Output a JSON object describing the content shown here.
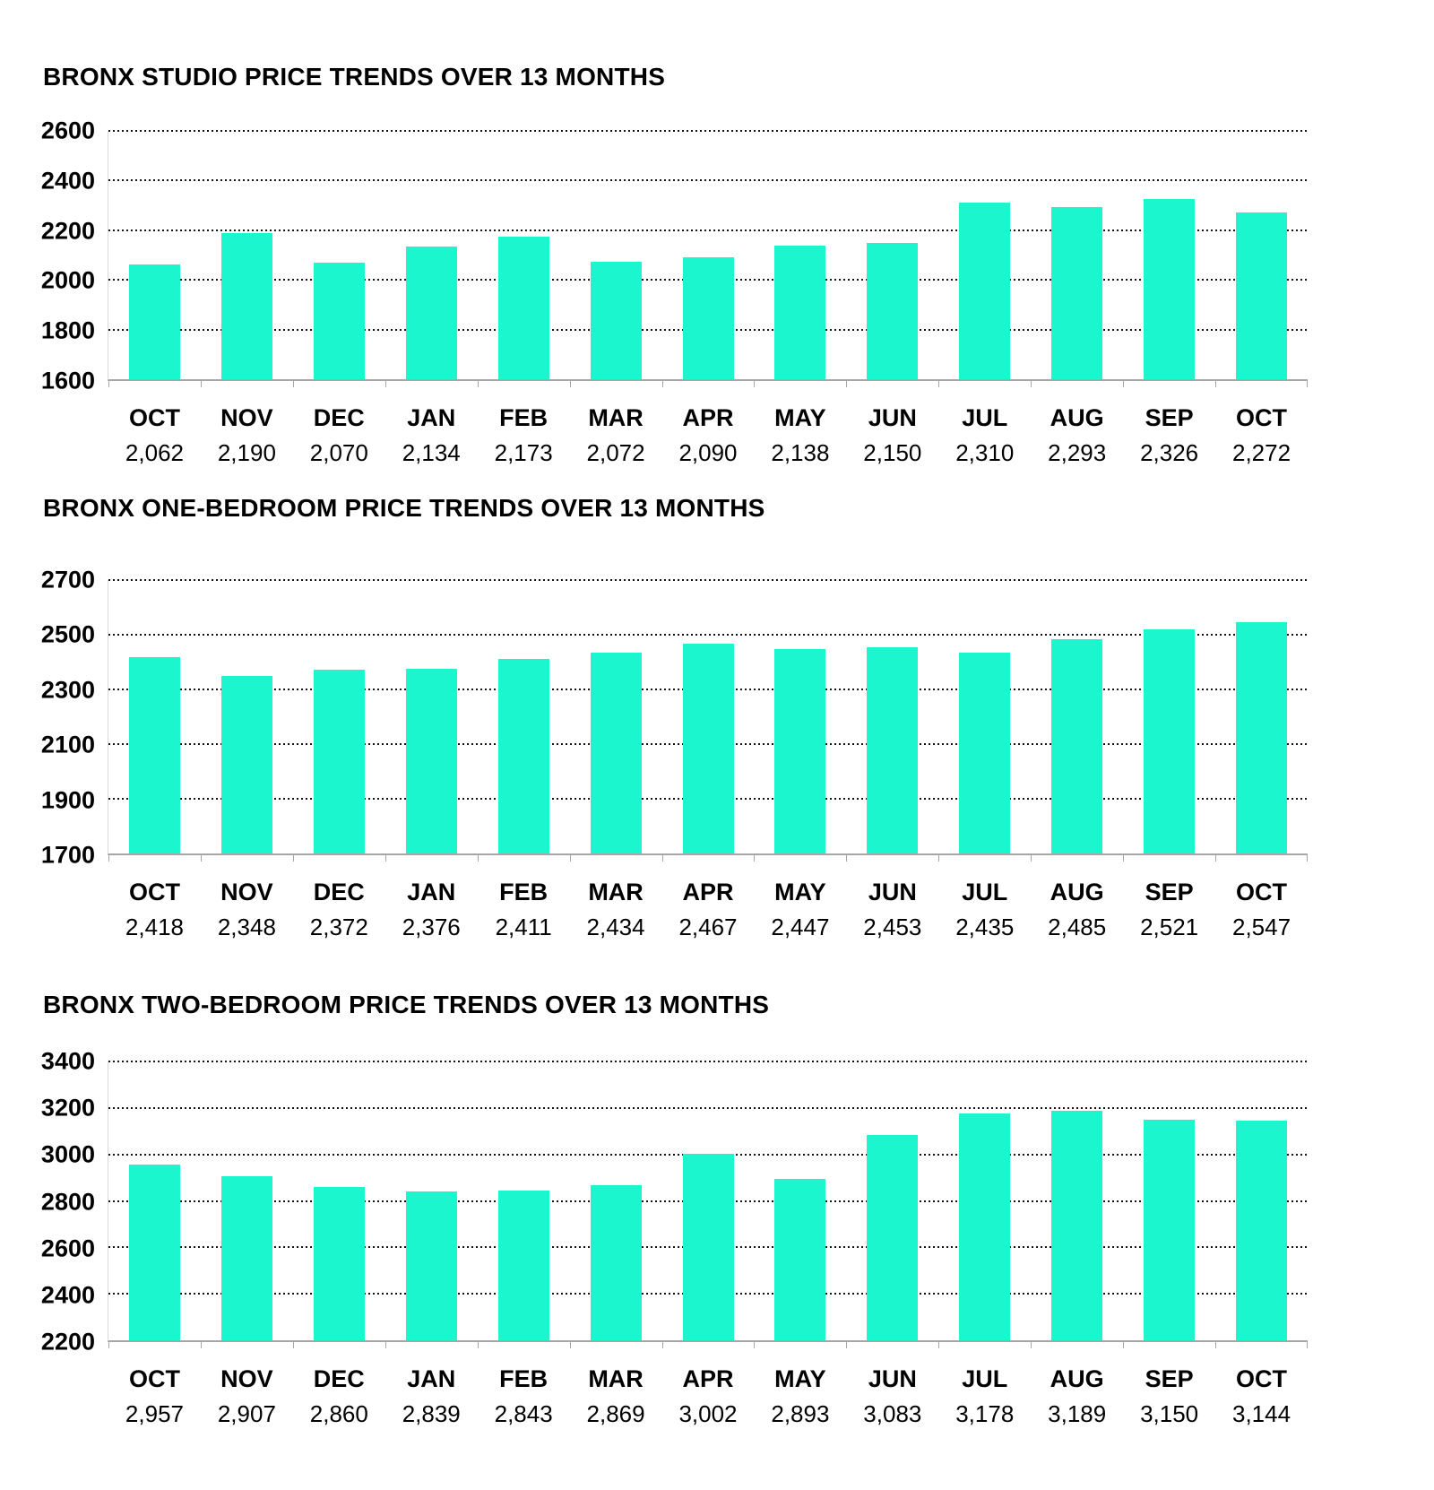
{
  "colors": {
    "bar": "#1BF6CE",
    "axis_line": "#a6a6a6",
    "gridline": "#141414",
    "text": "#000000",
    "background": "#ffffff"
  },
  "chart_data": [
    {
      "type": "bar",
      "title": "BRONX STUDIO PRICE TRENDS OVER 13 MONTHS",
      "categories": [
        "OCT",
        "NOV",
        "DEC",
        "JAN",
        "FEB",
        "MAR",
        "APR",
        "MAY",
        "JUN",
        "JUL",
        "AUG",
        "SEP",
        "OCT"
      ],
      "values": [
        2062,
        2190,
        2070,
        2134,
        2173,
        2072,
        2090,
        2138,
        2150,
        2310,
        2293,
        2326,
        2272
      ],
      "value_labels": [
        "2,062",
        "2,190",
        "2,070",
        "2,134",
        "2,173",
        "2,072",
        "2,090",
        "2,138",
        "2,150",
        "2,310",
        "2,293",
        "2,326",
        "2,272"
      ],
      "ylim": [
        1600,
        2600
      ],
      "yticks": [
        1600,
        1800,
        2000,
        2200,
        2400,
        2600
      ],
      "xlabel": "",
      "ylabel": "",
      "grid": "horizontal-dotted",
      "legend": "none",
      "bar_color": "#1BF6CE"
    },
    {
      "type": "bar",
      "title": "BRONX ONE-BEDROOM PRICE TRENDS OVER 13 MONTHS",
      "categories": [
        "OCT",
        "NOV",
        "DEC",
        "JAN",
        "FEB",
        "MAR",
        "APR",
        "MAY",
        "JUN",
        "JUL",
        "AUG",
        "SEP",
        "OCT"
      ],
      "values": [
        2418,
        2348,
        2372,
        2376,
        2411,
        2434,
        2467,
        2447,
        2453,
        2435,
        2485,
        2521,
        2547
      ],
      "value_labels": [
        "2,418",
        "2,348",
        "2,372",
        "2,376",
        "2,411",
        "2,434",
        "2,467",
        "2,447",
        "2,453",
        "2,435",
        "2,485",
        "2,521",
        "2,547"
      ],
      "ylim": [
        1700,
        2700
      ],
      "yticks": [
        1700,
        1900,
        2100,
        2300,
        2500,
        2700
      ],
      "xlabel": "",
      "ylabel": "",
      "grid": "horizontal-dotted",
      "legend": "none",
      "bar_color": "#1BF6CE"
    },
    {
      "type": "bar",
      "title": "BRONX TWO-BEDROOM PRICE TRENDS OVER 13 MONTHS",
      "categories": [
        "OCT",
        "NOV",
        "DEC",
        "JAN",
        "FEB",
        "MAR",
        "APR",
        "MAY",
        "JUN",
        "JUL",
        "AUG",
        "SEP",
        "OCT"
      ],
      "values": [
        2957,
        2907,
        2860,
        2839,
        2843,
        2869,
        3002,
        2893,
        3083,
        3178,
        3189,
        3150,
        3144
      ],
      "value_labels": [
        "2,957",
        "2,907",
        "2,860",
        "2,839",
        "2,843",
        "2,869",
        "3,002",
        "2,893",
        "3,083",
        "3,178",
        "3,189",
        "3,150",
        "3,144"
      ],
      "ylim": [
        2200,
        3400
      ],
      "yticks": [
        2200,
        2400,
        2600,
        2800,
        3000,
        3200,
        3400
      ],
      "xlabel": "",
      "ylabel": "",
      "grid": "horizontal-dotted",
      "legend": "none",
      "bar_color": "#1BF6CE"
    }
  ]
}
